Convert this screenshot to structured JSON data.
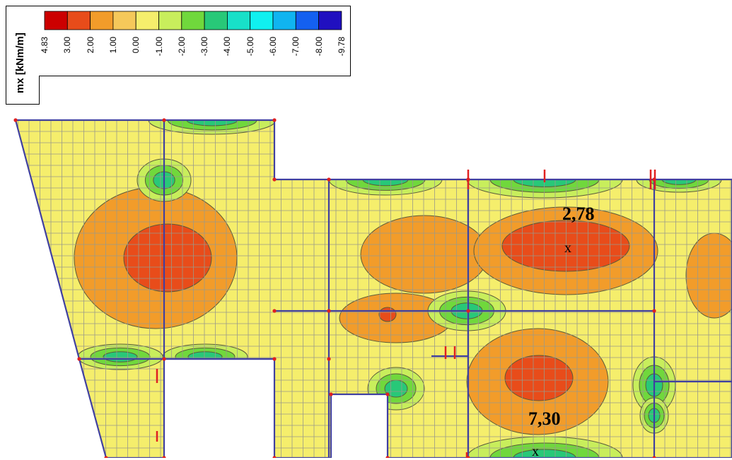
{
  "legend": {
    "title": "mx [kNm/m]",
    "ticks": [
      "4.83",
      "3.00",
      "2.00",
      "1.00",
      "0.00",
      "-1.00",
      "-2.00",
      "-3.00",
      "-4.00",
      "-5.00",
      "-6.00",
      "-7.00",
      "-8.00",
      "-9.78"
    ],
    "colors": [
      "#cc0000",
      "#e84c1a",
      "#f29c2a",
      "#f5c85a",
      "#f5ee6c",
      "#c8ee5c",
      "#70d83c",
      "#28c878",
      "#18e0c8",
      "#10f0f0",
      "#10b4f0",
      "#1460f0",
      "#2010c0"
    ]
  },
  "labels": {
    "value_1": "2,78",
    "value_2": "7,30",
    "marker_1": "x",
    "marker_2": "x"
  },
  "colors": {
    "slab_fill": "#f5ee6c",
    "grid_line": "#9a9a8a",
    "edge_line": "#4040a0",
    "node": "#e02020",
    "orange": "#f29c2a",
    "red_orange": "#e84c1a",
    "green": "#70d83c",
    "light_green": "#c8ee5c",
    "cyan": "#28c878"
  }
}
